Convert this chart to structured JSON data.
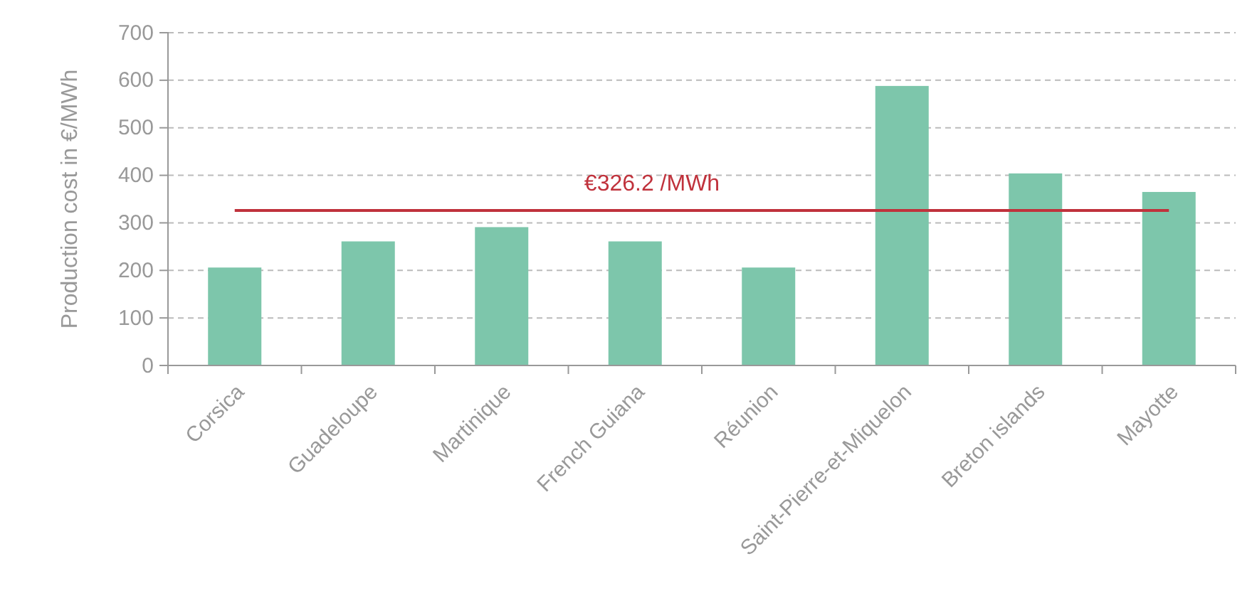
{
  "chart_data": {
    "type": "bar",
    "ylabel": "Production cost in €/MWh",
    "categories": [
      "Corsica",
      "Guadeloupe",
      "Martinique",
      "French Guiana",
      "Réunion",
      "Saint-Pierre-et-Miquelon",
      "Breton islands",
      "Mayotte"
    ],
    "values": [
      206,
      261,
      291,
      261,
      206,
      588,
      404,
      365
    ],
    "color": "#7dc6ab",
    "ylim": [
      0,
      700
    ],
    "yticks": [
      0,
      100,
      200,
      300,
      400,
      500,
      600,
      700
    ],
    "grid": "y",
    "ref_lines": [
      {
        "axis": "y",
        "value": 326.2,
        "label": "€326.2 /MWh",
        "color": "#c0323c"
      }
    ]
  }
}
